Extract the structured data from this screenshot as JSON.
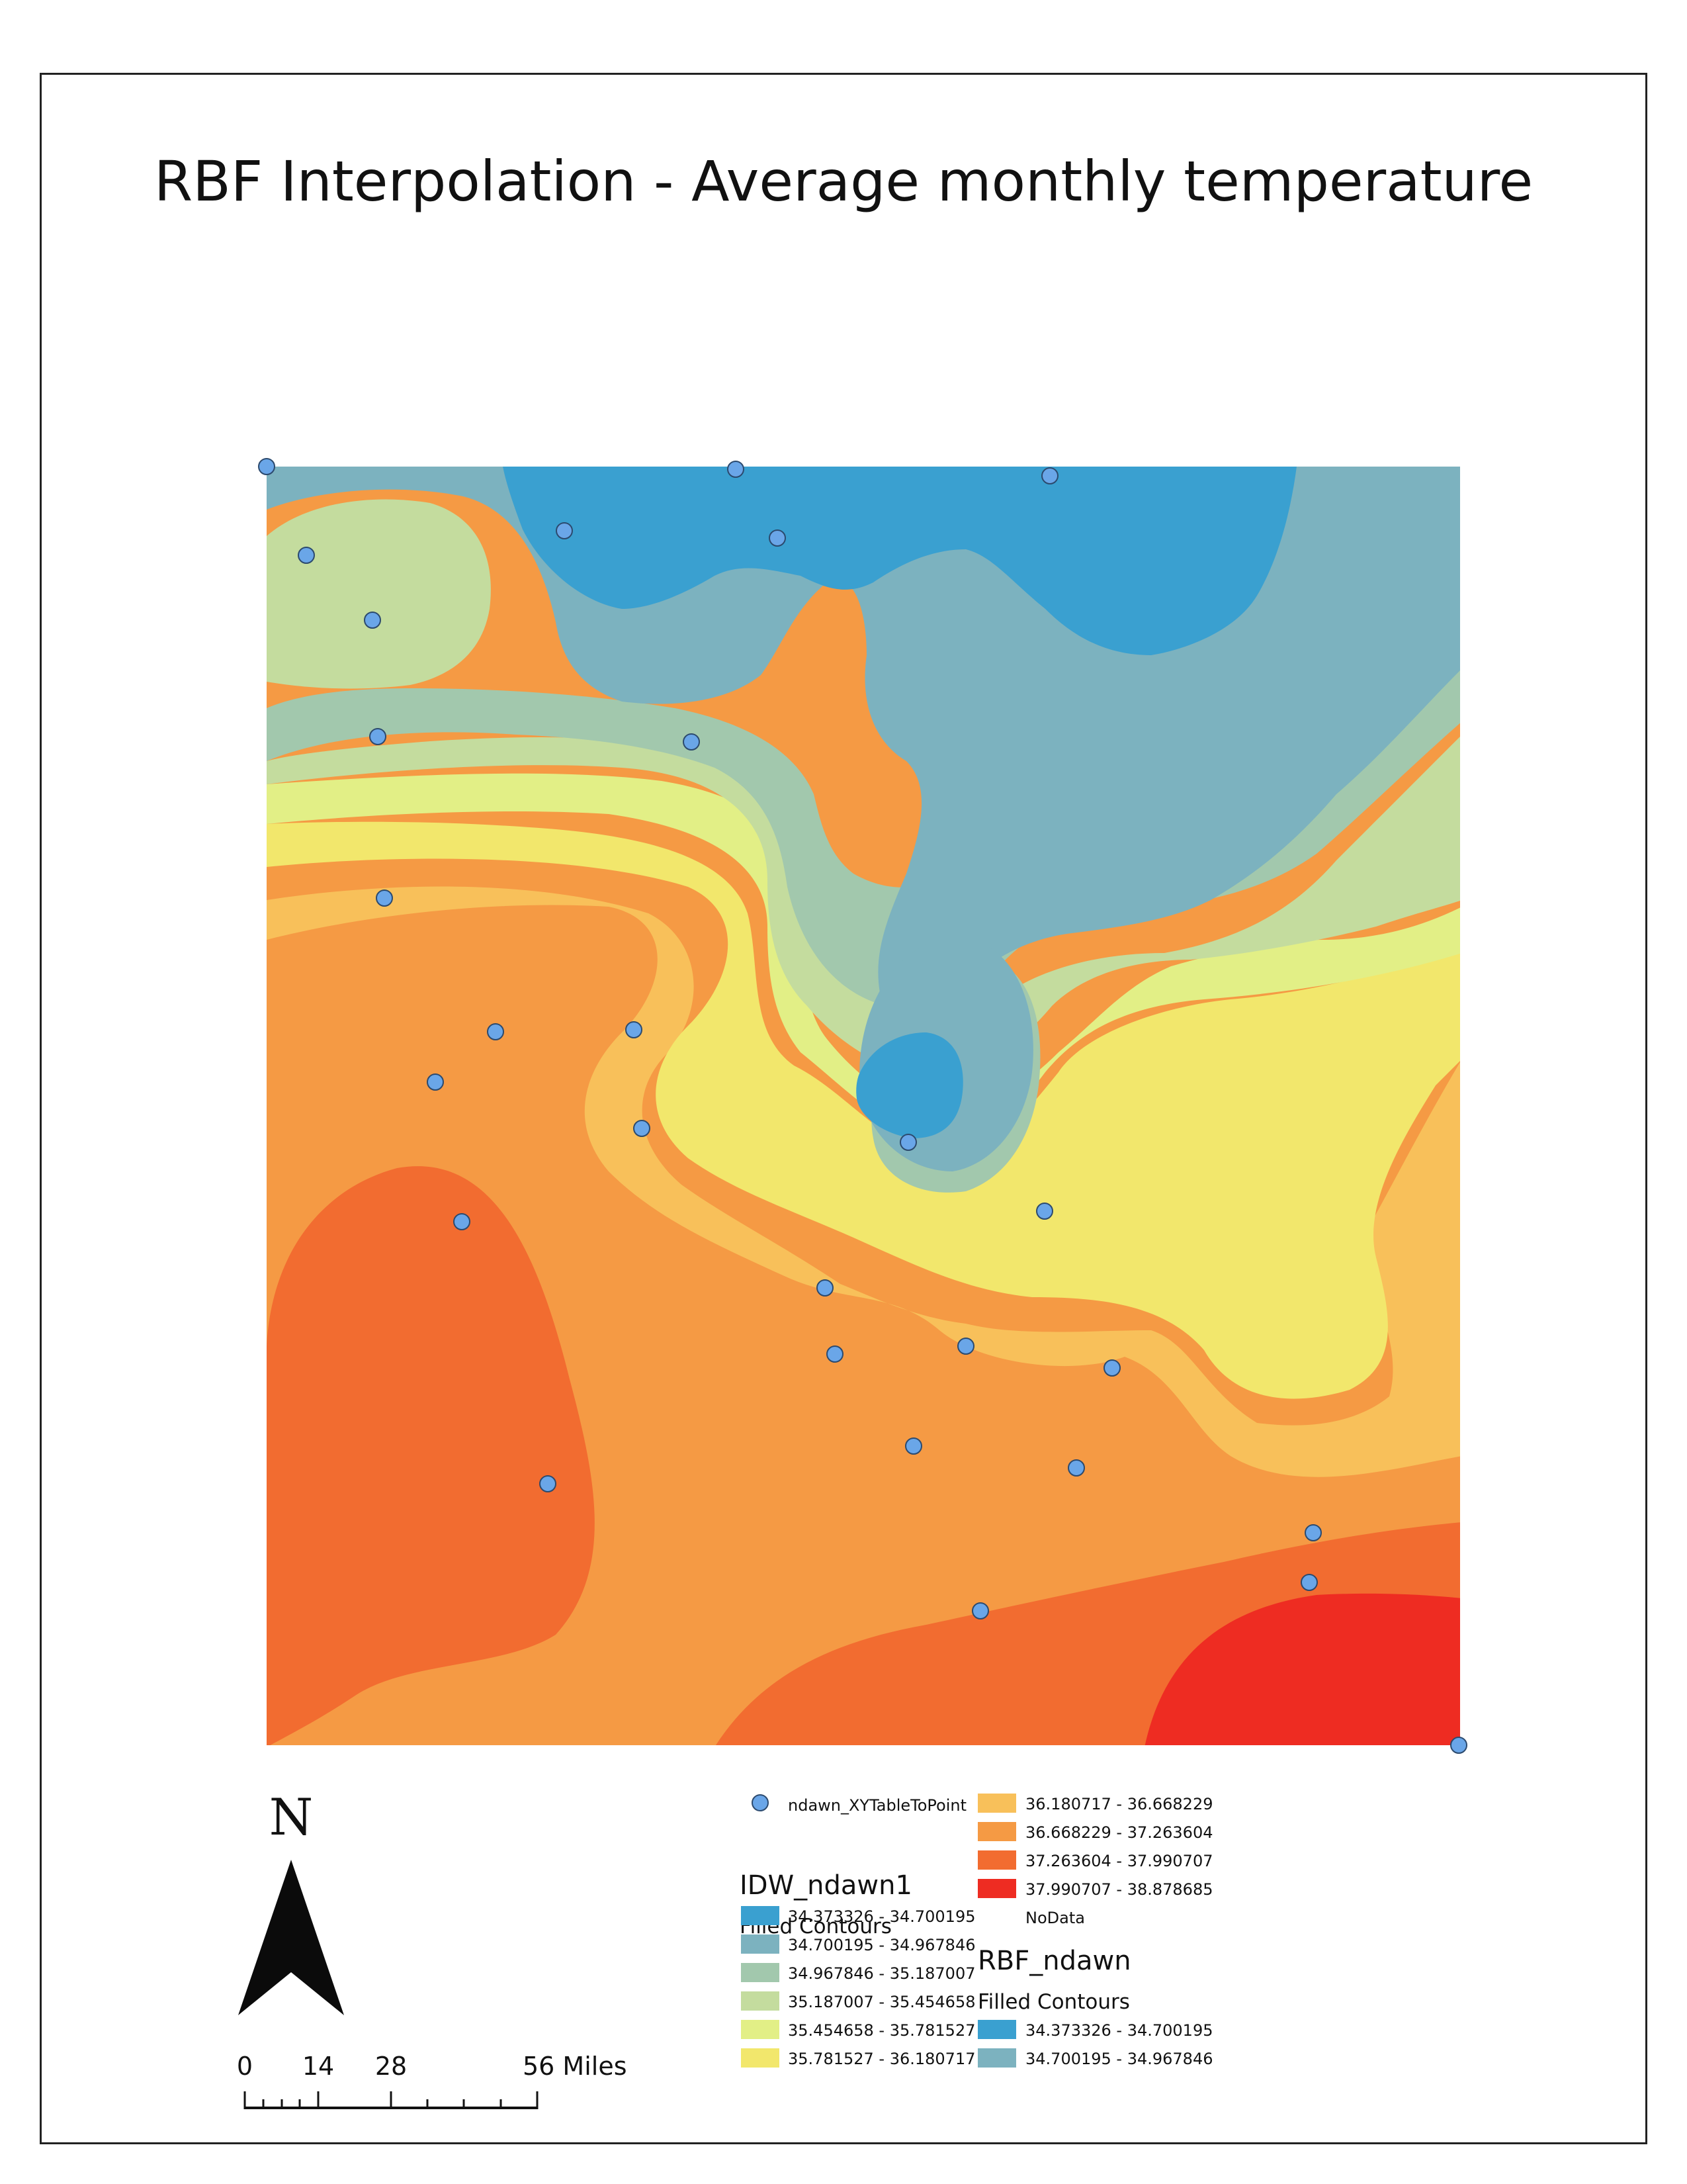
{
  "title": "RBF Interpolation - Average monthly temperature",
  "colors": {
    "c1": "#3aa0d0",
    "c2": "#7cb2bf",
    "c3": "#a2c8ad",
    "c4": "#c4dc9e",
    "c5": "#e2ef86",
    "c6": "#f2e76c",
    "c7": "#f8c05a",
    "c8": "#f59a44",
    "c9": "#f26c30",
    "c10": "#ee2c22",
    "point": "#6aa6e8"
  },
  "north": {
    "letter": "N"
  },
  "scalebar": {
    "ticks": [
      "0",
      "14",
      "28",
      "56 Miles"
    ]
  },
  "legend": {
    "points_label": "ndawn_XYTableToPoint",
    "idw_title": "IDW_ndawn1",
    "idw_subtitle": "Filled Contours",
    "idw_classes": [
      "34.373326 - 34.700195",
      "34.700195 - 34.967846",
      "34.967846 - 35.187007",
      "35.187007 - 35.454658",
      "35.454658 - 35.781527",
      "35.781527 - 36.180717"
    ],
    "idw_classes_cont": [
      "36.180717 - 36.668229",
      "36.668229 - 37.263604",
      "37.263604 - 37.990707",
      "37.990707 - 38.878685"
    ],
    "nodata": "NoData",
    "rbf_title": "RBF_ndawn",
    "rbf_subtitle": "Filled Contours",
    "rbf_classes": [
      "34.373326 - 34.700195",
      "34.700195 - 34.967846"
    ]
  }
}
